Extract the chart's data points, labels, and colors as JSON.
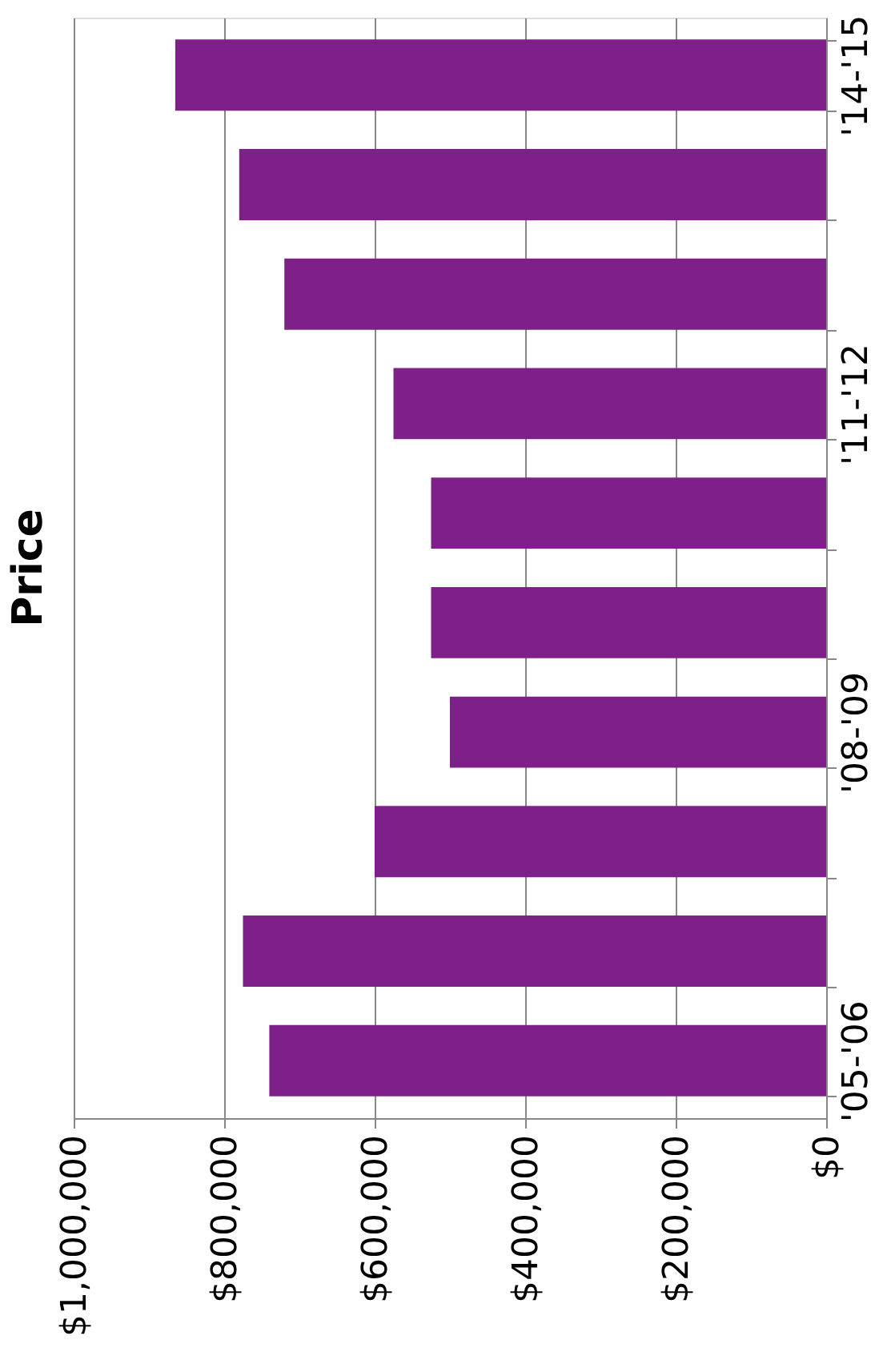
{
  "chart_data": {
    "type": "bar",
    "orientation": "horizontal",
    "title": "Price",
    "categories": [
      "'14-'15",
      null,
      null,
      "'11-'12",
      null,
      null,
      "'08-'09",
      null,
      null,
      "'05-'06"
    ],
    "values": [
      865000,
      780000,
      720000,
      575000,
      525000,
      525000,
      500000,
      600000,
      775000,
      740000
    ],
    "color": "#7f1f8a",
    "xlim": [
      1000000,
      0
    ],
    "xticks": [
      {
        "value": 1000000,
        "label": "$1,000,000"
      },
      {
        "value": 800000,
        "label": "$800,000"
      },
      {
        "value": 600000,
        "label": "$600,000"
      },
      {
        "value": 400000,
        "label": "$400,000"
      },
      {
        "value": 200000,
        "label": "$200,000"
      },
      {
        "value": 0,
        "label": "$0"
      }
    ],
    "grid": "x"
  }
}
